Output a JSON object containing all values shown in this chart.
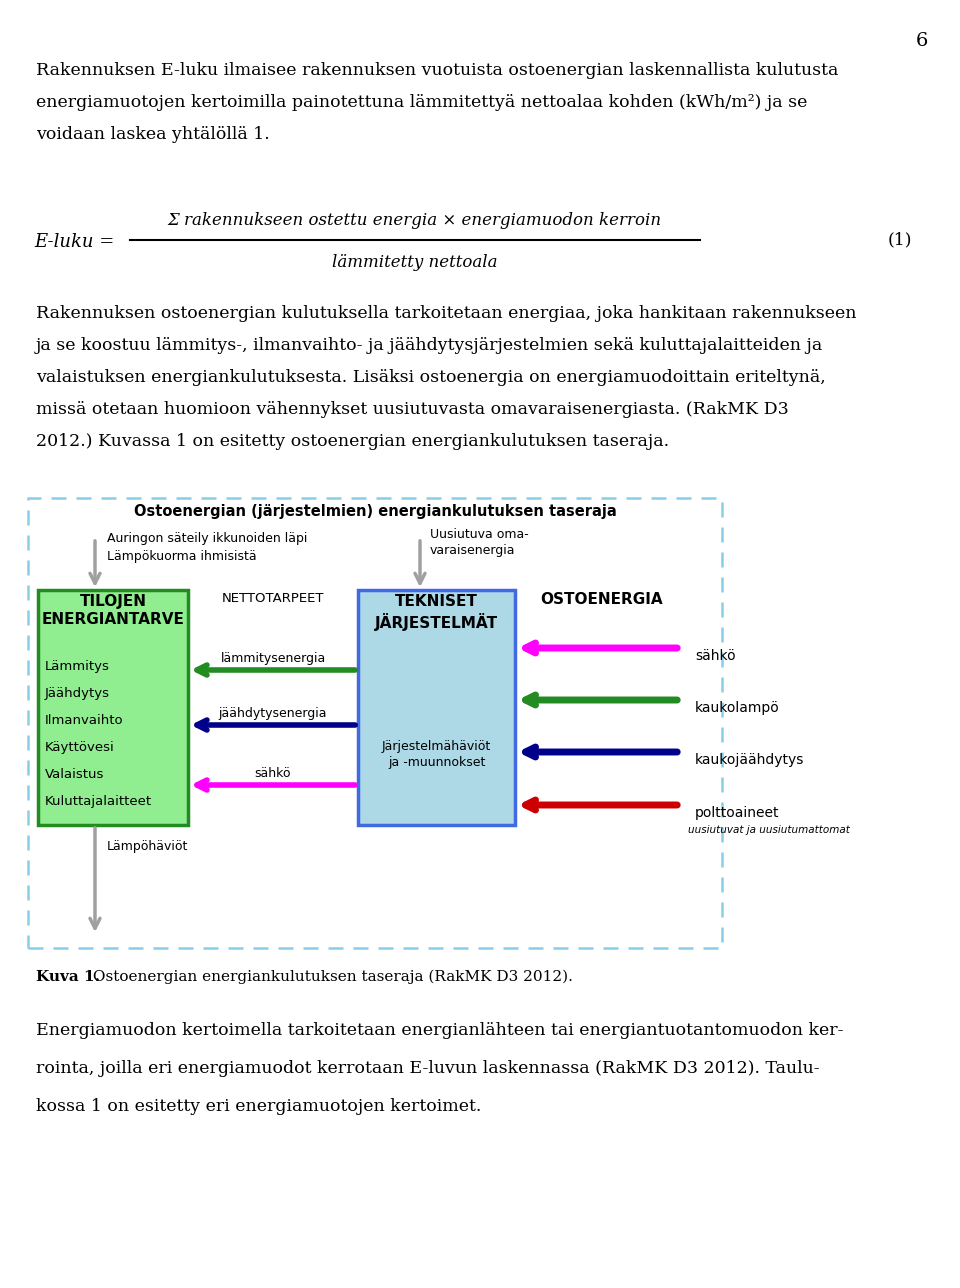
{
  "page_number": "6",
  "para1_lines": [
    "Rakennuksen E-luku ilmaisee rakennuksen vuotuista ostoenergian laskennallista kulutusta",
    "energiamuotojen kertoimilla painotettuna lämmitettyä nettoalaa kohden (kWh/m²) ja se",
    "voidaan laskea yhtälöllä 1."
  ],
  "formula_numerator": "Σ rakennukseen ostettu energia × energiamuodon kerroin",
  "formula_denominator": "lämmitetty nettoala",
  "formula_number": "(1)",
  "para2_lines": [
    "Rakennuksen ostoenergian kulutuksella tarkoitetaan energiaa, joka hankitaan rakennukseen",
    "ja se koostuu lämmitys-, ilmanvaihto- ja jäähdytysjärjestelmien sekä kuluttajalaitteiden ja",
    "valaistuksen energiankulutuksesta. Lisäksi ostoenergia on energiamuodoittain eriteltynä,",
    "missä otetaan huomioon vähennykset uusiutuvasta omavaraisenergiasta. (RakMK D3",
    "2012.) Kuvassa 1 on esitetty ostoenergian energiankulutuksen taseraja."
  ],
  "diagram_title": "Ostoenergian (järjestelmien) energiankulutuksen taseraja",
  "box1_title": "TILOJEN\nENERGIANTARVE",
  "box1_items": [
    "Lämmitys",
    "Jäähdytys",
    "Ilmanvaihto",
    "Käyttövesi",
    "Valaistus",
    "Kuluttajalaitteet"
  ],
  "box1_fill": "#90EE90",
  "box1_border": "#228B22",
  "box2_title": "TEKNISET\nJÄRJESTELMÄT",
  "box2_subtitle": "Järjestelmähäviöt\nja -muunnokset",
  "box2_fill": "#ADD8E6",
  "box2_border": "#4169E1",
  "box3_title": "OSTOENERGIA",
  "box3_items": [
    "sähkö",
    "kaukolampö",
    "kaukojäähdytys",
    "polttoaineet"
  ],
  "box3_subtitle": "uusiutuvat ja uusiutumattomat",
  "netto_label": "NETTOTARPEET",
  "netto_items": [
    "lämmitysenergia",
    "jäähdytysenergia",
    "sähkö"
  ],
  "arrow_top_left_label1": "Auringon säteily ikkunoiden läpi",
  "arrow_top_left_label2": "Lämpökuorma ihmisistä",
  "arrow_top_right_label": "Uusiutuva oma-\nvaraisenergia",
  "arrow_bottom_label": "Lämpöhäviöt",
  "caption_bold": "Kuva 1.",
  "caption_text": " Ostoenergian energiankulutuksen taseraja (RakMK D3 2012).",
  "para3_lines": [
    "Energiamuodon kertoimella tarkoitetaan energianlähteen tai energiantuotantomuodon ker-",
    "rointa, joilla eri energiamuodot kerrotaan E-luvun laskennassa (RakMK D3 2012). Taulu-",
    "kossa 1 on esitetty eri energiamuotojen kertoimet."
  ],
  "bg_color": "#ffffff",
  "text_color": "#000000",
  "dashed_border_color": "#87CEEB",
  "arrow_gray": "#A0A0A0",
  "arrow_magenta": "#FF00FF",
  "arrow_green": "#228B22",
  "arrow_blue": "#00008B",
  "arrow_red": "#CC0000"
}
